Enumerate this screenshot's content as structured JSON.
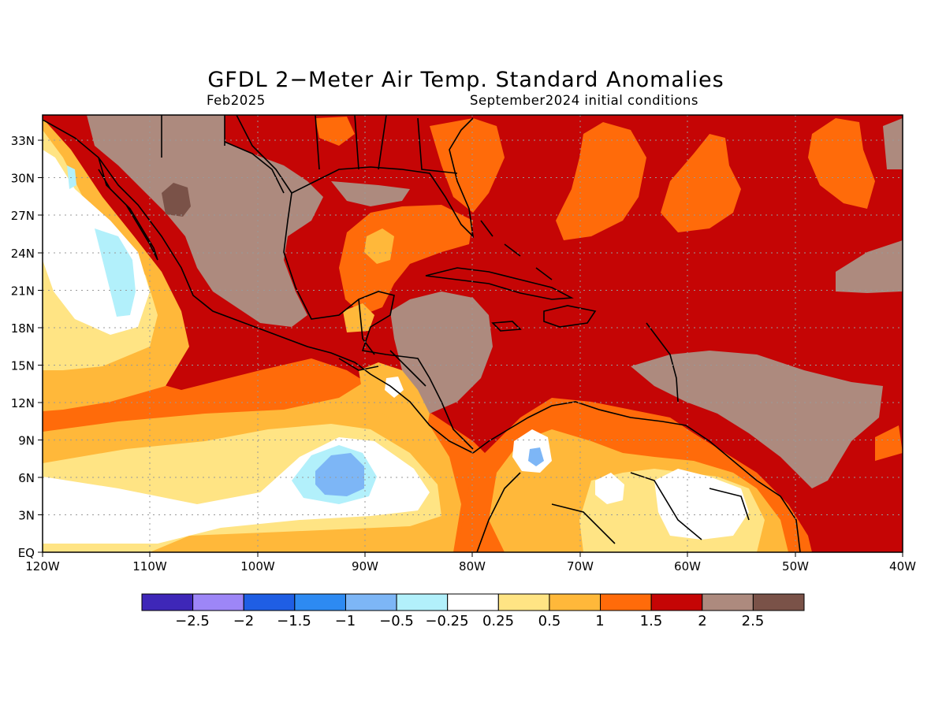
{
  "title": "GFDL 2−Meter Air Temp. Standard Anomalies",
  "valid_month": "Feb2025",
  "init_label": "September2024 initial conditions",
  "map": {
    "lat_labels": [
      "33N",
      "30N",
      "27N",
      "24N",
      "21N",
      "18N",
      "15N",
      "12N",
      "9N",
      "6N",
      "3N",
      "EQ"
    ],
    "lon_labels": [
      "120W",
      "110W",
      "100W",
      "90W",
      "80W",
      "70W",
      "60W",
      "50W",
      "40W"
    ],
    "lat_range": [
      0,
      35
    ],
    "lon_range": [
      -120,
      -40
    ],
    "grid": "dotted"
  },
  "colorbar": {
    "colors": [
      "#3e27b8",
      "#9d86f7",
      "#1f5ee4",
      "#2d8af2",
      "#7db6f6",
      "#b2f0fb",
      "#ffffff",
      "#ffe484",
      "#ffb83a",
      "#ff6b0a",
      "#c50505",
      "#ad8a7e",
      "#7a5248"
    ],
    "labels": [
      "−2.5",
      "−2",
      "−1.5",
      "−1",
      "−0.5",
      "−0.25",
      "0.25",
      "0.5",
      "1",
      "1.5",
      "2",
      "2.5"
    ]
  }
}
